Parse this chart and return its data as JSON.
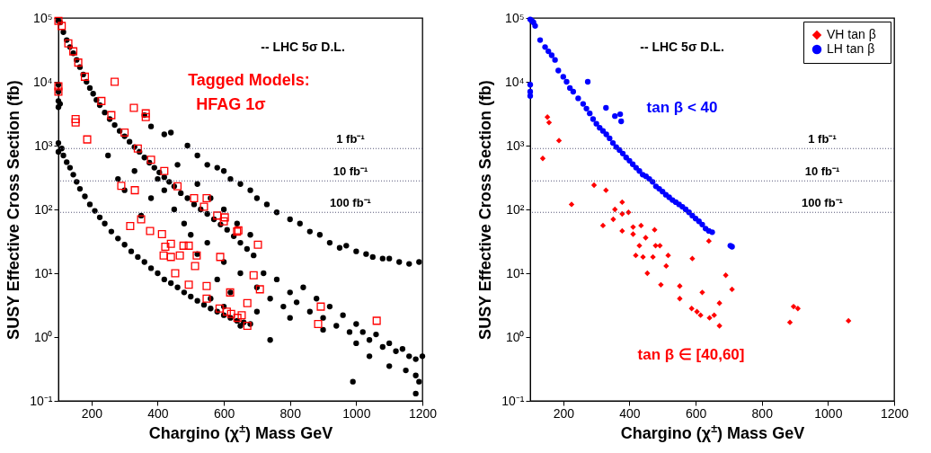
{
  "chart_data": [
    {
      "type": "scatter",
      "xlabel": "Chargino (χ$^{±}$) Mass GeV",
      "ylabel": "SUSY Effective Cross Section (fb)",
      "log": "y",
      "grid": false,
      "xlim": [
        100,
        1200
      ],
      "ylim": [
        0.1,
        100000
      ],
      "xticks": [
        200,
        400,
        600,
        800,
        1000,
        1200
      ],
      "yticks": [
        {
          "value": 0.1,
          "label": "10⁻¹"
        },
        {
          "value": 1,
          "label": "10⁰"
        },
        {
          "value": 10,
          "label": "10¹"
        },
        {
          "value": 100,
          "label": "10²"
        },
        {
          "value": 1000,
          "label": "10³"
        },
        {
          "value": 10000,
          "label": "10⁴"
        },
        {
          "value": 100000,
          "label": "10⁵"
        }
      ],
      "annotations": [
        "-- LHC 5σ D.L.",
        "Tagged Models:",
        "HFAG 1σ"
      ],
      "ref_lines": [
        {
          "axis": "y",
          "value": 900,
          "label": "1 fb⁻¹",
          "color": "#555577",
          "line_style": "dotted"
        },
        {
          "axis": "y",
          "value": 280,
          "label": "10 fb⁻¹",
          "color": "#555577",
          "line_style": "dotted"
        },
        {
          "axis": "y",
          "value": 90,
          "label": "100 fb⁻¹",
          "color": "#555577",
          "line_style": "dotted"
        }
      ],
      "series": [
        {
          "color": "#000000",
          "marker": "circle",
          "x": [
            100,
            105,
            115,
            125,
            135,
            145,
            155,
            165,
            175,
            185,
            195,
            205,
            215,
            225,
            240,
            255,
            270,
            285,
            300,
            315,
            330,
            345,
            360,
            375,
            390,
            405,
            420,
            435,
            450,
            470,
            490,
            510,
            530,
            550,
            570,
            590,
            610,
            630,
            650,
            670,
            690,
            100,
            100,
            100,
            100,
            105,
            100,
            100,
            110,
            115,
            125,
            135,
            145,
            155,
            165,
            180,
            195,
            210,
            225,
            240,
            260,
            280,
            300,
            320,
            340,
            360,
            380,
            400,
            420,
            440,
            460,
            480,
            500,
            520,
            540,
            560,
            580,
            600,
            620,
            640,
            660,
            680,
            700,
            700,
            720,
            740,
            760,
            780,
            800,
            800,
            820,
            840,
            860,
            880,
            900,
            900,
            920,
            940,
            960,
            980,
            1000,
            1000,
            1020,
            1040,
            1060,
            1080,
            1100,
            1120,
            1140,
            1160,
            1180,
            1200,
            1180,
            1180,
            1190,
            1150,
            1100,
            990,
            1040,
            400,
            420,
            380,
            450,
            350,
            480,
            500,
            550,
            520,
            600,
            650,
            580,
            620,
            300,
            330,
            250,
            280,
            460,
            520,
            560,
            600,
            640,
            680,
            560,
            600,
            650,
            740,
            360,
            380,
            420,
            440,
            490,
            520,
            550,
            580,
            600,
            620,
            650,
            680,
            700,
            730,
            760,
            800,
            830,
            860,
            890,
            920,
            950,
            970,
            1000,
            1030,
            1050,
            1080,
            1100,
            1130,
            1160,
            1190
          ],
          "values": [
            90000,
            85000,
            60000,
            45000,
            35000,
            28000,
            22000,
            17000,
            13000,
            10000,
            8000,
            6500,
            5200,
            4300,
            3300,
            2600,
            2100,
            1700,
            1400,
            1150,
            950,
            800,
            650,
            540,
            450,
            380,
            320,
            270,
            230,
            180,
            150,
            120,
            100,
            85,
            70,
            58,
            48,
            38,
            30,
            24,
            19,
            9000,
            7000,
            5000,
            4000,
            4500,
            1100,
            800,
            900,
            700,
            550,
            450,
            350,
            270,
            210,
            160,
            120,
            95,
            75,
            60,
            45,
            35,
            28,
            22,
            18,
            15,
            12,
            10,
            8,
            7,
            6,
            5,
            4.3,
            3.7,
            3.2,
            2.8,
            2.5,
            2.2,
            2,
            1.8,
            1.7,
            1.6,
            6,
            2.5,
            10,
            4,
            8,
            3,
            5,
            2,
            3.5,
            6,
            2.5,
            4,
            2,
            1.3,
            3,
            1.5,
            2.2,
            1.2,
            1.6,
            0.8,
            1.2,
            0.9,
            1.1,
            0.7,
            0.8,
            0.6,
            0.65,
            0.5,
            0.45,
            0.5,
            0.25,
            0.13,
            0.2,
            0.3,
            0.35,
            0.2,
            0.5,
            300,
            200,
            150,
            100,
            80,
            60,
            40,
            30,
            20,
            15,
            10,
            8,
            5,
            200,
            400,
            700,
            300,
            500,
            250,
            150,
            100,
            60,
            40,
            4,
            3,
            1.5,
            0.9,
            3000,
            2000,
            1500,
            1600,
            1000,
            700,
            500,
            450,
            400,
            300,
            250,
            200,
            150,
            120,
            90,
            70,
            60,
            45,
            40,
            30,
            25,
            27,
            22,
            20,
            18,
            17,
            17,
            15,
            14,
            15
          ]
        },
        {
          "color": "#ff0000",
          "marker": "square",
          "x": [
            100,
            110,
            130,
            145,
            160,
            180,
            230,
            260,
            300,
            340,
            380,
            420,
            460,
            510,
            540,
            580,
            600,
            640,
            100,
            100,
            152,
            152,
            187,
            270,
            328,
            364,
            364,
            290,
            331,
            317,
            350,
            377,
            413,
            440,
            423,
            418,
            440,
            467,
            478,
            494,
            518,
            513,
            453,
            494,
            548,
            548,
            589,
            619,
            671,
            587,
            609,
            622,
            641,
            654,
            671,
            703,
            644,
            690,
            709,
            885,
            1062,
            893,
            603,
            548
          ],
          "values": [
            90000,
            75000,
            40000,
            30000,
            20000,
            12000,
            5000,
            3000,
            1600,
            900,
            600,
            400,
            230,
            150,
            110,
            80,
            65,
            45,
            7000,
            8500,
            2600,
            2300,
            1250,
            10000,
            3900,
            3200,
            2800,
            235,
            200,
            55,
            70,
            46,
            41,
            29,
            26,
            19,
            18,
            19,
            27,
            27,
            19,
            13,
            10,
            6.6,
            6.3,
            4,
            18,
            5,
            3.4,
            2.8,
            2.5,
            2.3,
            2,
            2.2,
            1.5,
            28,
            47,
            9.3,
            5.6,
            1.6,
            1.8,
            3,
            75,
            150
          ]
        }
      ]
    },
    {
      "type": "scatter",
      "xlabel": "Chargino (χ$^{±}$) Mass GeV",
      "ylabel": "SUSY Effective Cross Section (fb)",
      "log": "y",
      "grid": false,
      "legend": "top right",
      "xlim": [
        100,
        1200
      ],
      "ylim": [
        0.1,
        100000
      ],
      "xticks": [
        200,
        400,
        600,
        800,
        1000,
        1200
      ],
      "yticks": [
        {
          "value": 0.1,
          "label": "10⁻¹"
        },
        {
          "value": 1,
          "label": "10⁰"
        },
        {
          "value": 10,
          "label": "10¹"
        },
        {
          "value": 100,
          "label": "10²"
        },
        {
          "value": 1000,
          "label": "10³"
        },
        {
          "value": 10000,
          "label": "10⁴"
        },
        {
          "value": 100000,
          "label": "10⁵"
        }
      ],
      "annotations": [
        "-- LHC 5σ D.L.",
        "tan β < 40",
        "tan β ∈ [40,60]"
      ],
      "ref_lines": [
        {
          "axis": "y",
          "value": 900,
          "label": "1 fb⁻¹",
          "color": "#555577",
          "line_style": "dotted"
        },
        {
          "axis": "y",
          "value": 280,
          "label": "10 fb⁻¹",
          "color": "#555577",
          "line_style": "dotted"
        },
        {
          "axis": "y",
          "value": 90,
          "label": "100 fb⁻¹",
          "color": "#555577",
          "line_style": "dotted"
        }
      ],
      "series": [
        {
          "name": "VH   tan β",
          "color": "#ff0000",
          "marker": "diamond",
          "x": [
            152,
            157,
            187,
            138,
            293,
            329,
            225,
            378,
            356,
            397,
            351,
            320,
            378,
            378,
            411,
            411,
            435,
            476,
            449,
            430,
            419,
            441,
            471,
            479,
            492,
            517,
            511,
            454,
            495,
            552,
            552,
            590,
            620,
            672,
            588,
            604,
            615,
            642,
            656,
            672,
            640,
            691,
            710,
            885,
            896,
            909,
            1062
          ],
          "values": [
            2800,
            2300,
            1200,
            630,
            240,
            200,
            120,
            130,
            100,
            90,
            70,
            56,
            85,
            46,
            53,
            41,
            56,
            48,
            36,
            27,
            19,
            18,
            18,
            27,
            27,
            19,
            13,
            10,
            6.6,
            6.3,
            4,
            17,
            5,
            3.4,
            2.8,
            2.5,
            2.2,
            2,
            2.2,
            1.5,
            32,
            9.3,
            5.6,
            1.7,
            3,
            2.8,
            1.8
          ]
        },
        {
          "name": "LH   tan β",
          "color": "#0000ff",
          "marker": "circle",
          "x": [
            100,
            105,
            110,
            115,
            130,
            145,
            155,
            165,
            175,
            185,
            200,
            210,
            220,
            230,
            245,
            260,
            270,
            280,
            290,
            300,
            310,
            320,
            330,
            340,
            350,
            360,
            370,
            380,
            390,
            400,
            410,
            420,
            430,
            440,
            450,
            460,
            470,
            480,
            490,
            500,
            510,
            520,
            530,
            540,
            550,
            560,
            570,
            580,
            590,
            600,
            610,
            620,
            630,
            640,
            650,
            705,
            710,
            100,
            100,
            100,
            274,
            329,
            356,
            372,
            375
          ],
          "values": [
            95000,
            90000,
            85000,
            75000,
            45000,
            35000,
            30000,
            26000,
            22000,
            15000,
            12000,
            10000,
            8000,
            7000,
            5500,
            4500,
            3800,
            3200,
            2600,
            2200,
            1900,
            1700,
            1500,
            1300,
            1100,
            950,
            850,
            750,
            650,
            580,
            510,
            450,
            400,
            350,
            330,
            300,
            270,
            230,
            210,
            190,
            170,
            155,
            140,
            130,
            120,
            110,
            100,
            90,
            80,
            72,
            65,
            58,
            50,
            46,
            44,
            27,
            26,
            9000,
            7000,
            6000,
            10000,
            3900,
            2900,
            3100,
            2400
          ]
        }
      ]
    }
  ]
}
